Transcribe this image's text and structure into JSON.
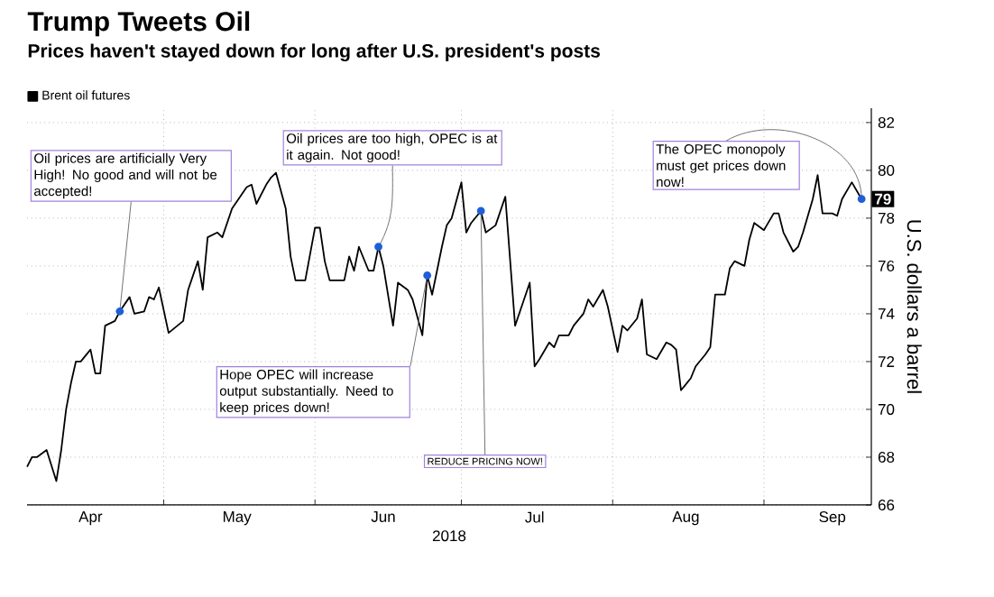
{
  "chart_data": {
    "type": "line",
    "title": "Trump Tweets Oil",
    "subtitle": "Prices haven't stayed down for long after U.S. president's posts",
    "xlabel": "2018",
    "ylabel": "U.S. dollars a barrel",
    "x": [
      "2018-04-03",
      "2018-04-04",
      "2018-04-05",
      "2018-04-07",
      "2018-04-09",
      "2018-04-10",
      "2018-04-11",
      "2018-04-12",
      "2018-04-13",
      "2018-04-14",
      "2018-04-16",
      "2018-04-17",
      "2018-04-18",
      "2018-04-19",
      "2018-04-21",
      "2018-04-22",
      "2018-04-24",
      "2018-04-25",
      "2018-04-27",
      "2018-04-28",
      "2018-04-29",
      "2018-04-30",
      "2018-05-02",
      "2018-05-05",
      "2018-05-06",
      "2018-05-08",
      "2018-05-09",
      "2018-05-10",
      "2018-05-12",
      "2018-05-13",
      "2018-05-15",
      "2018-05-16",
      "2018-05-18",
      "2018-05-19",
      "2018-05-20",
      "2018-05-22",
      "2018-05-23",
      "2018-05-24",
      "2018-05-26",
      "2018-05-27",
      "2018-05-28",
      "2018-05-30",
      "2018-06-01",
      "2018-06-02",
      "2018-06-03",
      "2018-06-04",
      "2018-06-07",
      "2018-06-08",
      "2018-06-09",
      "2018-06-10",
      "2018-06-12",
      "2018-06-13",
      "2018-06-14",
      "2018-06-15",
      "2018-06-17",
      "2018-06-18",
      "2018-06-20",
      "2018-06-21",
      "2018-06-23",
      "2018-06-24",
      "2018-06-25",
      "2018-06-27",
      "2018-06-28",
      "2018-06-29",
      "2018-07-01",
      "2018-07-02",
      "2018-07-03",
      "2018-07-05",
      "2018-07-06",
      "2018-07-08",
      "2018-07-10",
      "2018-07-12",
      "2018-07-15",
      "2018-07-16",
      "2018-07-17",
      "2018-07-19",
      "2018-07-20",
      "2018-07-21",
      "2018-07-23",
      "2018-07-24",
      "2018-07-26",
      "2018-07-27",
      "2018-07-28",
      "2018-07-30",
      "2018-07-31",
      "2018-08-02",
      "2018-08-03",
      "2018-08-04",
      "2018-08-06",
      "2018-08-07",
      "2018-08-08",
      "2018-08-10",
      "2018-08-12",
      "2018-08-13",
      "2018-08-14",
      "2018-08-15",
      "2018-08-17",
      "2018-08-18",
      "2018-08-20",
      "2018-08-21",
      "2018-08-22",
      "2018-08-24",
      "2018-08-25",
      "2018-08-26",
      "2018-08-28",
      "2018-08-29",
      "2018-08-30",
      "2018-09-01",
      "2018-09-03",
      "2018-09-04",
      "2018-09-05",
      "2018-09-07",
      "2018-09-08",
      "2018-09-09",
      "2018-09-11",
      "2018-09-12",
      "2018-09-13",
      "2018-09-15",
      "2018-09-16",
      "2018-09-17",
      "2018-09-19",
      "2018-09-21"
    ],
    "series": [
      {
        "name": "Brent oil futures",
        "color": "#000000",
        "values": [
          67.6,
          68.0,
          68.0,
          68.3,
          67.0,
          68.3,
          70.0,
          71.1,
          72.0,
          72.0,
          72.5,
          71.5,
          71.5,
          73.5,
          73.7,
          74.1,
          74.7,
          74.0,
          74.1,
          74.7,
          74.6,
          75.1,
          73.2,
          73.7,
          75.0,
          76.2,
          75.0,
          77.2,
          77.4,
          77.2,
          78.4,
          78.7,
          79.3,
          79.4,
          78.6,
          79.4,
          79.7,
          79.9,
          78.4,
          76.4,
          75.4,
          75.4,
          77.6,
          77.6,
          76.2,
          75.4,
          75.4,
          76.4,
          75.8,
          76.8,
          75.8,
          75.8,
          76.8,
          76.0,
          73.5,
          75.3,
          75.0,
          74.6,
          73.1,
          75.6,
          74.8,
          76.8,
          77.7,
          78.0,
          79.5,
          77.4,
          77.8,
          78.3,
          77.4,
          77.7,
          78.9,
          73.5,
          75.3,
          71.8,
          72.1,
          72.8,
          72.6,
          73.1,
          73.1,
          73.5,
          74.0,
          74.6,
          74.3,
          75.0,
          74.3,
          72.4,
          73.5,
          73.3,
          73.8,
          74.6,
          72.3,
          72.1,
          72.8,
          72.7,
          72.5,
          70.8,
          71.3,
          71.8,
          72.3,
          72.6,
          74.8,
          74.8,
          75.9,
          76.2,
          76.0,
          77.1,
          77.8,
          77.5,
          78.2,
          78.2,
          77.4,
          76.6,
          76.8,
          77.4,
          78.8,
          79.8,
          78.2,
          78.2,
          78.1,
          78.8,
          79.5,
          78.8
        ],
        "value_labels": [
          null,
          null,
          null,
          null,
          null,
          null,
          null,
          null,
          null,
          null,
          null,
          null,
          null,
          null,
          null,
          null,
          null,
          null,
          null,
          null,
          null,
          null,
          null,
          null,
          null,
          null,
          null,
          null,
          null,
          null,
          null,
          null,
          null,
          null,
          null,
          null,
          null,
          null,
          null,
          null,
          null,
          null,
          null,
          null,
          null,
          null,
          null,
          null,
          null,
          null,
          null,
          null,
          null,
          null,
          null,
          null,
          null,
          null,
          null,
          null,
          null,
          null,
          null,
          null,
          null,
          null,
          null,
          null,
          null,
          null,
          null,
          null,
          null,
          null,
          null,
          null,
          null,
          null,
          null,
          null,
          null,
          null,
          null,
          null,
          null,
          null,
          null,
          null,
          null,
          null,
          null,
          null,
          null,
          null,
          null,
          null,
          null,
          null,
          null,
          null,
          null,
          null,
          null,
          null,
          null,
          null,
          null,
          null,
          null,
          null,
          null,
          null,
          null,
          null,
          null,
          null,
          null,
          null,
          null,
          null,
          null,
          "79"
        ]
      }
    ],
    "xlim": [
      "2018-04-03",
      "2018-09-23"
    ],
    "xticks": [
      {
        "value": "2018-05-01",
        "label": null
      },
      {
        "value": "2018-06-01",
        "label": null
      },
      {
        "value": "2018-07-01",
        "label": null
      },
      {
        "value": "2018-08-01",
        "label": null
      },
      {
        "value": "2018-09-01",
        "label": null
      },
      {
        "value": "2018-04-16",
        "label": "Apr"
      },
      {
        "value": "2018-05-16",
        "label": "May"
      },
      {
        "value": "2018-06-15",
        "label": "Jun"
      },
      {
        "value": "2018-07-16",
        "label": "Jul"
      },
      {
        "value": "2018-08-16",
        "label": "Aug"
      },
      {
        "value": "2018-09-15",
        "label": "Sep"
      }
    ],
    "ylim": [
      66,
      82.6
    ],
    "yticks": [
      66,
      68,
      70,
      72,
      74,
      76,
      78,
      80,
      82
    ],
    "grid": true,
    "legend": "top left",
    "line_style": "solid",
    "annotations": [
      {
        "text": "Oil prices are artificially Very High! No good and will not be accepted!",
        "x": "2018-04-22",
        "y": 74.1
      },
      {
        "text": "Oil prices are too high, OPEC is at it again. Not good!",
        "x": "2018-06-14",
        "y": 76.8
      },
      {
        "text": "Hope OPEC will increase output substantially. Need to keep prices down!",
        "x": "2018-06-24",
        "y": 75.6
      },
      {
        "text": "REDUCE PRICING NOW!",
        "x": "2018-07-05",
        "y": 78.3
      },
      {
        "text": "The OPEC monopoly must get prices down now!",
        "x": "2018-09-21",
        "y": 78.8
      }
    ]
  }
}
